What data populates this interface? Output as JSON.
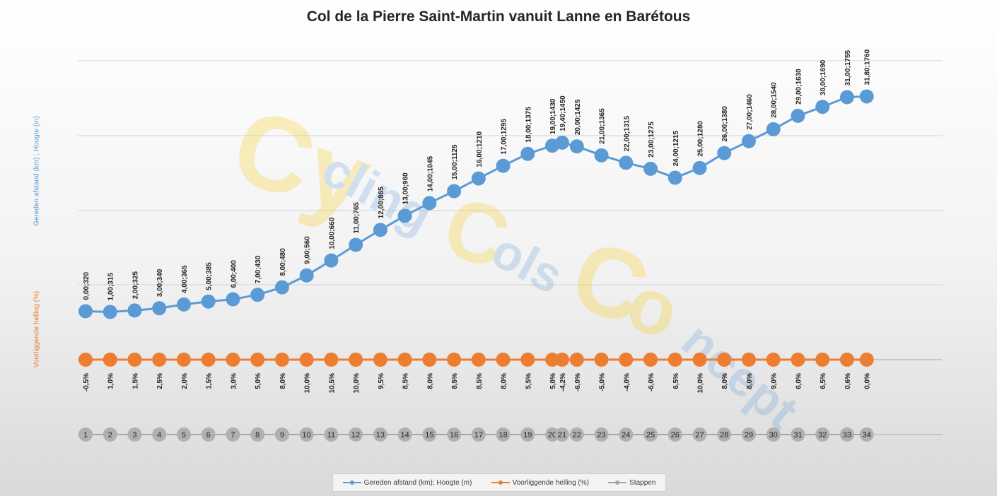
{
  "chart_data": {
    "type": "line",
    "title": "Col de la Pierre Saint-Martin vanuit Lanne en Barétous",
    "ylabel_top": "Gereden afstand (km) ;  Hoogte (m)",
    "ylabel_bottom": "Voorliggende helling (%)",
    "legend_position": "bottom",
    "grid": true,
    "colors": {
      "series1": "#5b9bd5",
      "series2": "#ed7d31",
      "series3": "#a5a5a5",
      "series3_marker": "#b0b0b0"
    },
    "series": [
      {
        "name": "Gereden afstand (km); Hoogte (m)",
        "km": [
          0,
          1,
          2,
          3,
          4,
          5,
          6,
          7,
          8,
          9,
          10,
          11,
          12,
          13,
          14,
          15,
          16,
          17,
          18,
          19,
          19.4,
          20,
          21,
          22,
          23,
          24,
          25,
          26,
          27,
          28,
          29,
          30,
          31,
          31.8
        ],
        "values": [
          320,
          315,
          325,
          340,
          365,
          385,
          400,
          430,
          480,
          560,
          660,
          765,
          865,
          960,
          1045,
          1125,
          1210,
          1295,
          1375,
          1430,
          1450,
          1425,
          1365,
          1315,
          1275,
          1215,
          1280,
          1380,
          1460,
          1540,
          1630,
          1690,
          1755,
          1760
        ],
        "labels": [
          "0,00;320",
          "1,00;315",
          "2,00;325",
          "3,00;340",
          "4,00;365",
          "5,00;385",
          "6,00;400",
          "7,00;430",
          "8,00;480",
          "9,00;560",
          "10,00;660",
          "11,00;765",
          "12,00;865",
          "13,00;960",
          "14,00;1045",
          "15,00;1125",
          "16,00;1210",
          "17,00;1295",
          "18,00;1375",
          "19,00;1430",
          "19,40;1450",
          "20,00;1425",
          "21,00;1365",
          "22,00;1315",
          "23,00;1275",
          "24,00;1215",
          "25,00;1280",
          "26,00;1380",
          "27,00;1460",
          "28,00;1540",
          "29,00;1630",
          "30,00;1690",
          "31,00;1755",
          "31,80;1760"
        ]
      },
      {
        "name": "Voorliggende helling (%)",
        "labels": [
          "-0,5%",
          "1,0%",
          "1,5%",
          "2,5%",
          "2,0%",
          "1,5%",
          "3,0%",
          "5,0%",
          "8,0%",
          "10,0%",
          "10,5%",
          "10,0%",
          "9,5%",
          "8,5%",
          "8,0%",
          "8,5%",
          "8,5%",
          "8,0%",
          "5,5%",
          "5,0%",
          "-4,2%",
          "-6,0%",
          "-5,0%",
          "-4,0%",
          "-6,0%",
          "6,5%",
          "10,0%",
          "8,0%",
          "8,0%",
          "9,0%",
          "6,0%",
          "6,5%",
          "0,6%",
          "0,0%"
        ]
      },
      {
        "name": "Stappen",
        "labels": [
          "1",
          "2",
          "3",
          "4",
          "5",
          "6",
          "7",
          "8",
          "9",
          "10",
          "11",
          "12",
          "13",
          "14",
          "15",
          "16",
          "17",
          "18",
          "19",
          "20",
          "21",
          "22",
          "23",
          "24",
          "25",
          "26",
          "27",
          "28",
          "29",
          "30",
          "31",
          "32",
          "33",
          "34"
        ]
      }
    ]
  },
  "watermark": {
    "text_cy": "Cy",
    "text_cling": "cling",
    "text_c1": "C",
    "text_ols": "ols",
    "text_c2": "C",
    "text_o": "o",
    "text_ncept": "ncept"
  }
}
